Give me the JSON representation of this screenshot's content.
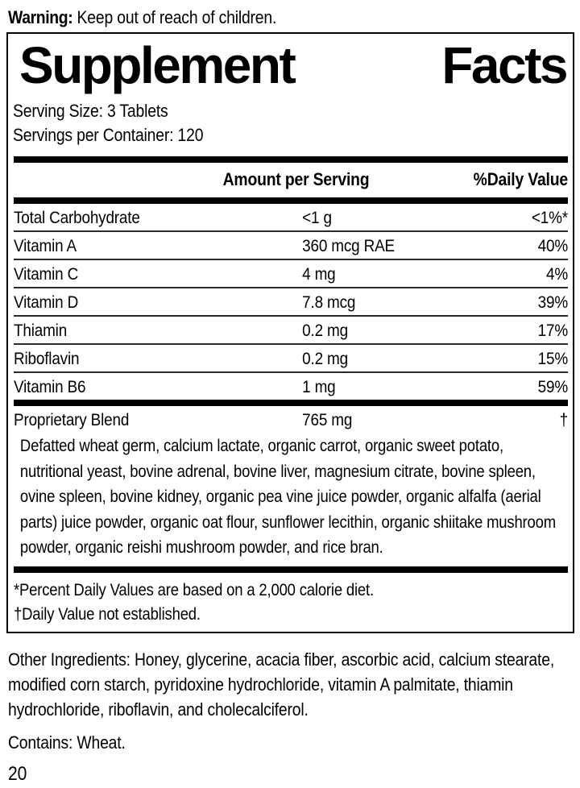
{
  "warning": {
    "label": "Warning:",
    "text": " Keep out of reach of children."
  },
  "panel": {
    "title": {
      "word1": "Supplement",
      "word2": "Facts"
    },
    "serving_size": "Serving Size: 3 Tablets",
    "servings_per_container": "Servings per Container: 120",
    "header": {
      "amount": "Amount per Serving",
      "daily_value": "%Daily Value"
    },
    "nutrients": [
      {
        "name": "Total Carbohydrate",
        "amount": "<1 g",
        "dv": "<1%*"
      },
      {
        "name": "Vitamin A",
        "amount": "360 mcg RAE",
        "dv": "40%"
      },
      {
        "name": "Vitamin C",
        "amount": "4 mg",
        "dv": "4%"
      },
      {
        "name": "Vitamin D",
        "amount": "7.8 mcg",
        "dv": "39%"
      },
      {
        "name": "Thiamin",
        "amount": "0.2 mg",
        "dv": "17%"
      },
      {
        "name": "Riboflavin",
        "amount": "0.2 mg",
        "dv": "15%"
      },
      {
        "name": "Vitamin B6",
        "amount": "1 mg",
        "dv": "59%"
      }
    ],
    "blend": {
      "name": "Proprietary Blend",
      "amount": "765 mg",
      "dv": "†",
      "description": "Defatted wheat germ, calcium lactate, organic carrot, organic sweet potato, nutritional yeast, bovine adrenal, bovine liver, magnesium citrate, bovine spleen, ovine spleen, bovine kidney, organic pea vine juice powder, organic alfalfa (aerial parts) juice powder, organic oat flour, sunflower lecithin, organic shiitake mushroom powder, organic reishi mushroom powder, and rice bran."
    },
    "footnotes": [
      "*Percent Daily Values are based on a 2,000 calorie diet.",
      "†Daily Value not established."
    ]
  },
  "other_ingredients": "Other Ingredients: Honey, glycerine, acacia fiber, ascorbic acid, calcium stearate,  modified corn starch, pyridoxine hydrochloride, vitamin A palmitate, thiamin hydrochloride, riboflavin, and cholecalciferol.",
  "contains": "Contains: Wheat.",
  "page_number": "20",
  "colors": {
    "ink": "#000000",
    "background": "#ffffff",
    "rule": "#2a2a2a"
  }
}
